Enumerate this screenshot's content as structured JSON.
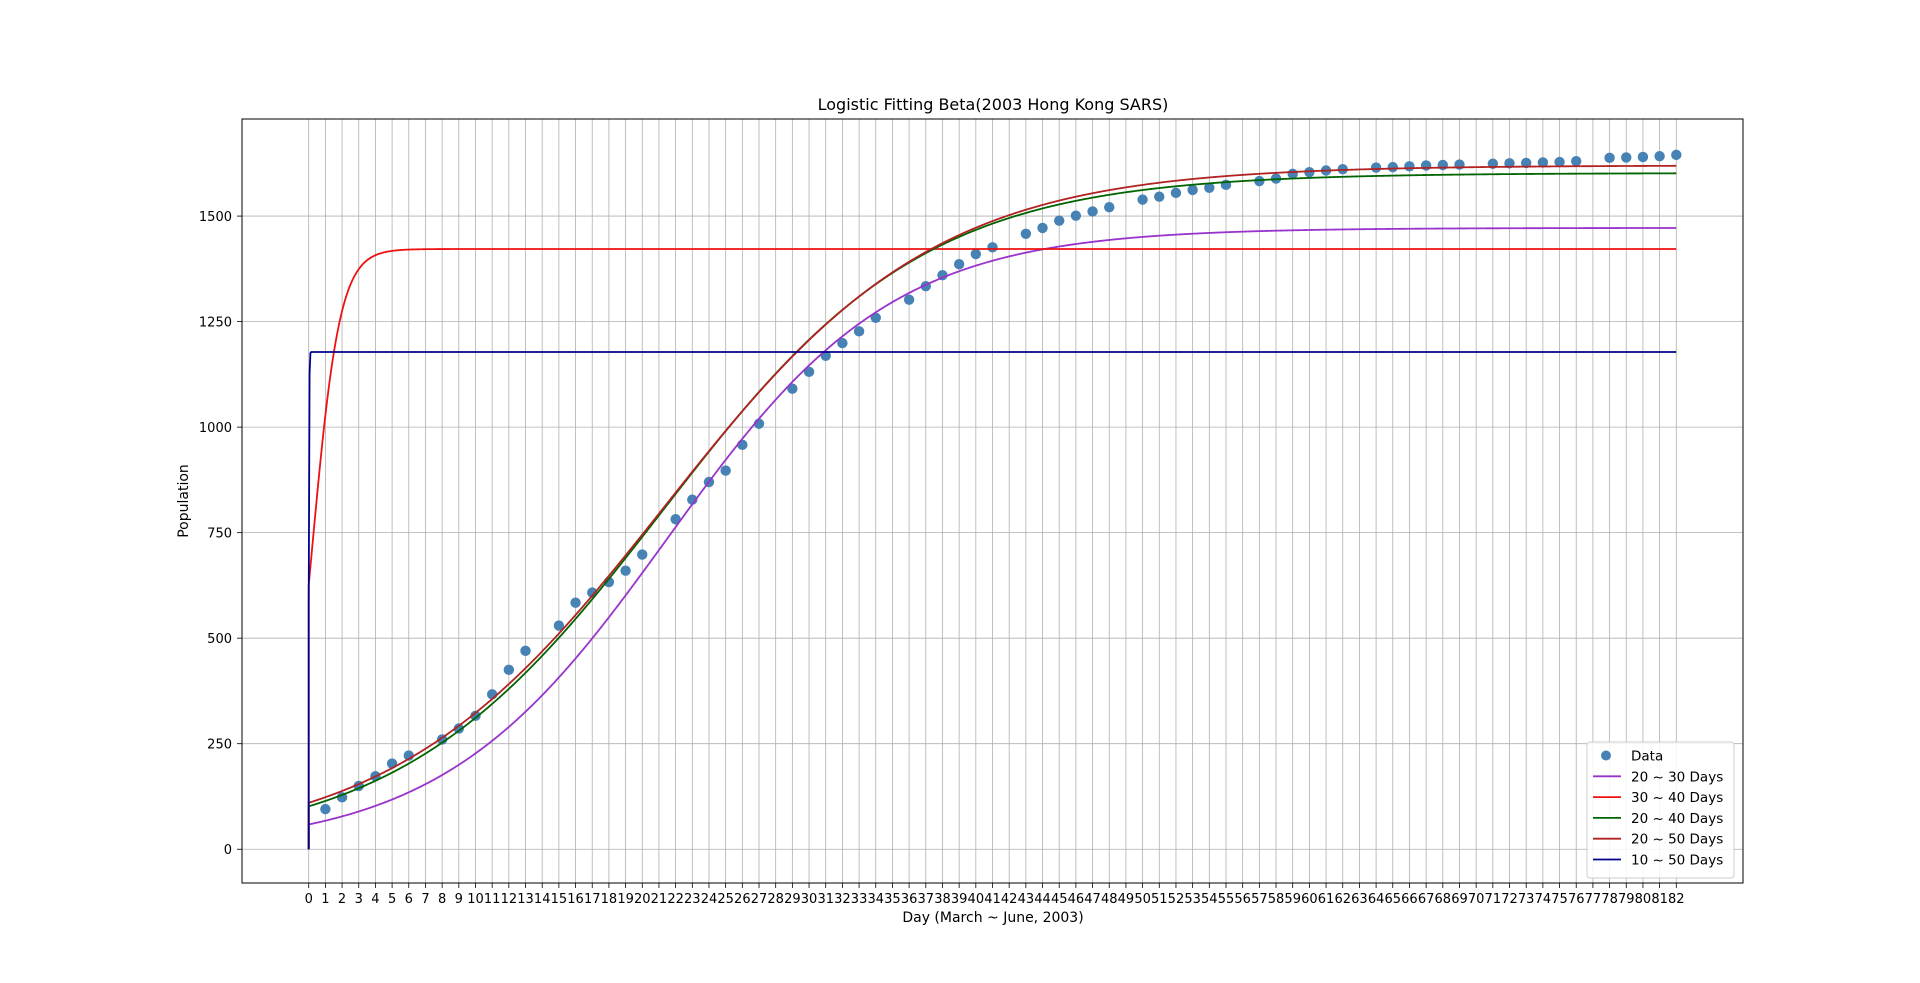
{
  "chart_data": {
    "type": "line",
    "title": "Logistic Fitting Beta(2003 Hong Kong SARS)",
    "xlabel": "Day (March ~ June, 2003)",
    "ylabel": "Population",
    "xlim": [
      -4,
      86
    ],
    "ylim": [
      -80,
      1730
    ],
    "x_ticks": [
      0,
      1,
      2,
      3,
      4,
      5,
      6,
      7,
      8,
      9,
      10,
      11,
      12,
      13,
      14,
      15,
      16,
      17,
      18,
      19,
      20,
      21,
      22,
      23,
      24,
      25,
      26,
      27,
      28,
      29,
      30,
      31,
      32,
      33,
      34,
      35,
      36,
      37,
      38,
      39,
      40,
      41,
      42,
      43,
      44,
      45,
      46,
      47,
      48,
      49,
      50,
      51,
      52,
      53,
      54,
      55,
      56,
      57,
      58,
      59,
      60,
      61,
      62,
      63,
      64,
      65,
      66,
      67,
      68,
      69,
      70,
      71,
      72,
      73,
      74,
      75,
      76,
      77,
      78,
      79,
      80,
      81,
      82
    ],
    "y_ticks": [
      0,
      250,
      500,
      750,
      1000,
      1250,
      1500
    ],
    "grid": true,
    "legend_position": "bottom-right",
    "series": [
      {
        "name": "Data",
        "style": "scatter",
        "color": "#4682b4",
        "x": [
          1,
          2,
          3,
          4,
          5,
          6,
          8,
          9,
          10,
          11,
          12,
          13,
          15,
          16,
          17,
          18,
          19,
          20,
          22,
          23,
          24,
          25,
          26,
          27,
          29,
          30,
          31,
          32,
          33,
          34,
          36,
          37,
          38,
          39,
          40,
          41,
          43,
          44,
          45,
          46,
          47,
          48,
          50,
          51,
          52,
          53,
          54,
          55,
          57,
          58,
          59,
          60,
          61,
          62,
          64,
          65,
          66,
          67,
          68,
          69,
          71,
          72,
          73,
          74,
          75,
          76,
          78,
          79,
          80,
          81,
          82
        ],
        "y": [
          95,
          123,
          150,
          173,
          203,
          222,
          260,
          286,
          316,
          367,
          425,
          470,
          530,
          584,
          608,
          633,
          660,
          698,
          782,
          828,
          870,
          897,
          958,
          1008,
          1091,
          1131,
          1169,
          1199,
          1227,
          1259,
          1302,
          1334,
          1360,
          1386,
          1410,
          1426,
          1458,
          1472,
          1489,
          1501,
          1511,
          1521,
          1539,
          1546,
          1555,
          1562,
          1567,
          1574,
          1583,
          1589,
          1600,
          1604,
          1608,
          1611,
          1615,
          1616,
          1618,
          1620,
          1621,
          1622,
          1624,
          1625,
          1626,
          1627,
          1628,
          1630,
          1638,
          1639,
          1640,
          1642,
          1645
        ]
      },
      {
        "name": "20 ~ 30 Days",
        "style": "line",
        "color": "#9933cc",
        "logistic": {
          "K": 1472,
          "r": 0.148,
          "t0": 21.5,
          "start": 0,
          "end": 82
        }
      },
      {
        "name": "30 ~ 40 Days",
        "style": "line",
        "color": "#ee1111",
        "logistic": {
          "K": 1422,
          "r": 1.2,
          "t0": 0.2,
          "start": 0,
          "end": 82
        }
      },
      {
        "name": "20 ~ 40 Days",
        "style": "line",
        "color": "#006400",
        "logistic": {
          "K": 1602,
          "r": 0.127,
          "t0": 21.2,
          "start": 0,
          "end": 82
        }
      },
      {
        "name": "20 ~ 50 Days",
        "style": "line",
        "color": "#b22222",
        "logistic": {
          "K": 1620,
          "r": 0.123,
          "t0": 21.3,
          "start": 0,
          "end": 82
        }
      },
      {
        "name": "10 ~ 50 Days",
        "style": "line",
        "color": "#00008b",
        "logistic": {
          "K": 1178,
          "r": 60,
          "t0": 0,
          "start": 0,
          "end": 82
        }
      }
    ]
  }
}
